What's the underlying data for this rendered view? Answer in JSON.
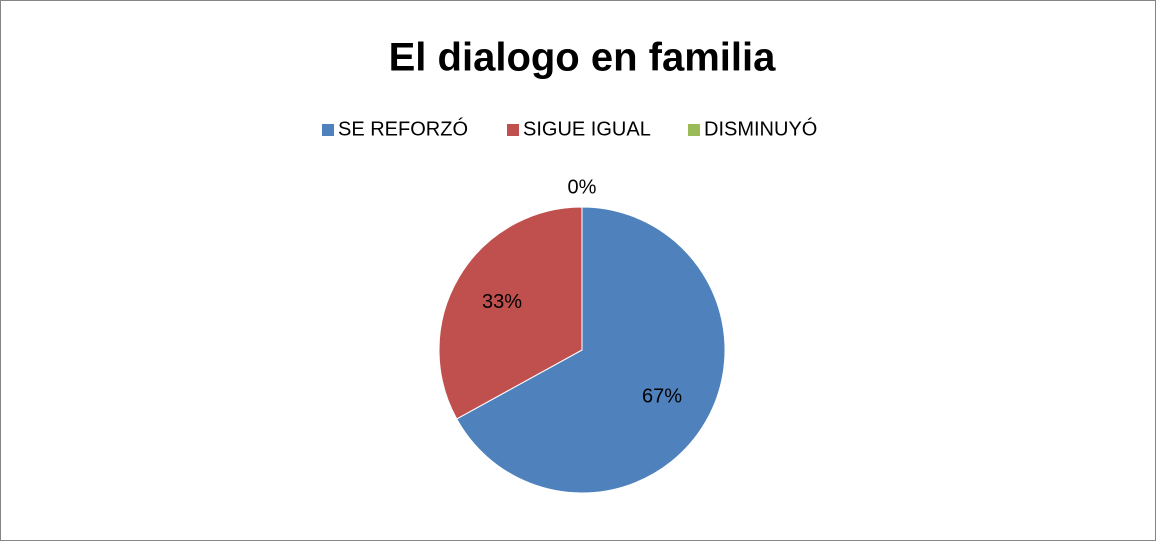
{
  "chart_data": {
    "type": "pie",
    "title": "El dialogo en familia",
    "categories": [
      "SE REFORZÓ",
      "SIGUE IGUAL",
      "DISMINUYÓ"
    ],
    "values": [
      67,
      33,
      0
    ],
    "value_labels": [
      "67%",
      "33%",
      "0%"
    ],
    "colors": [
      "#4f81bd",
      "#c0504d",
      "#9bbb59"
    ],
    "legend": "top"
  }
}
